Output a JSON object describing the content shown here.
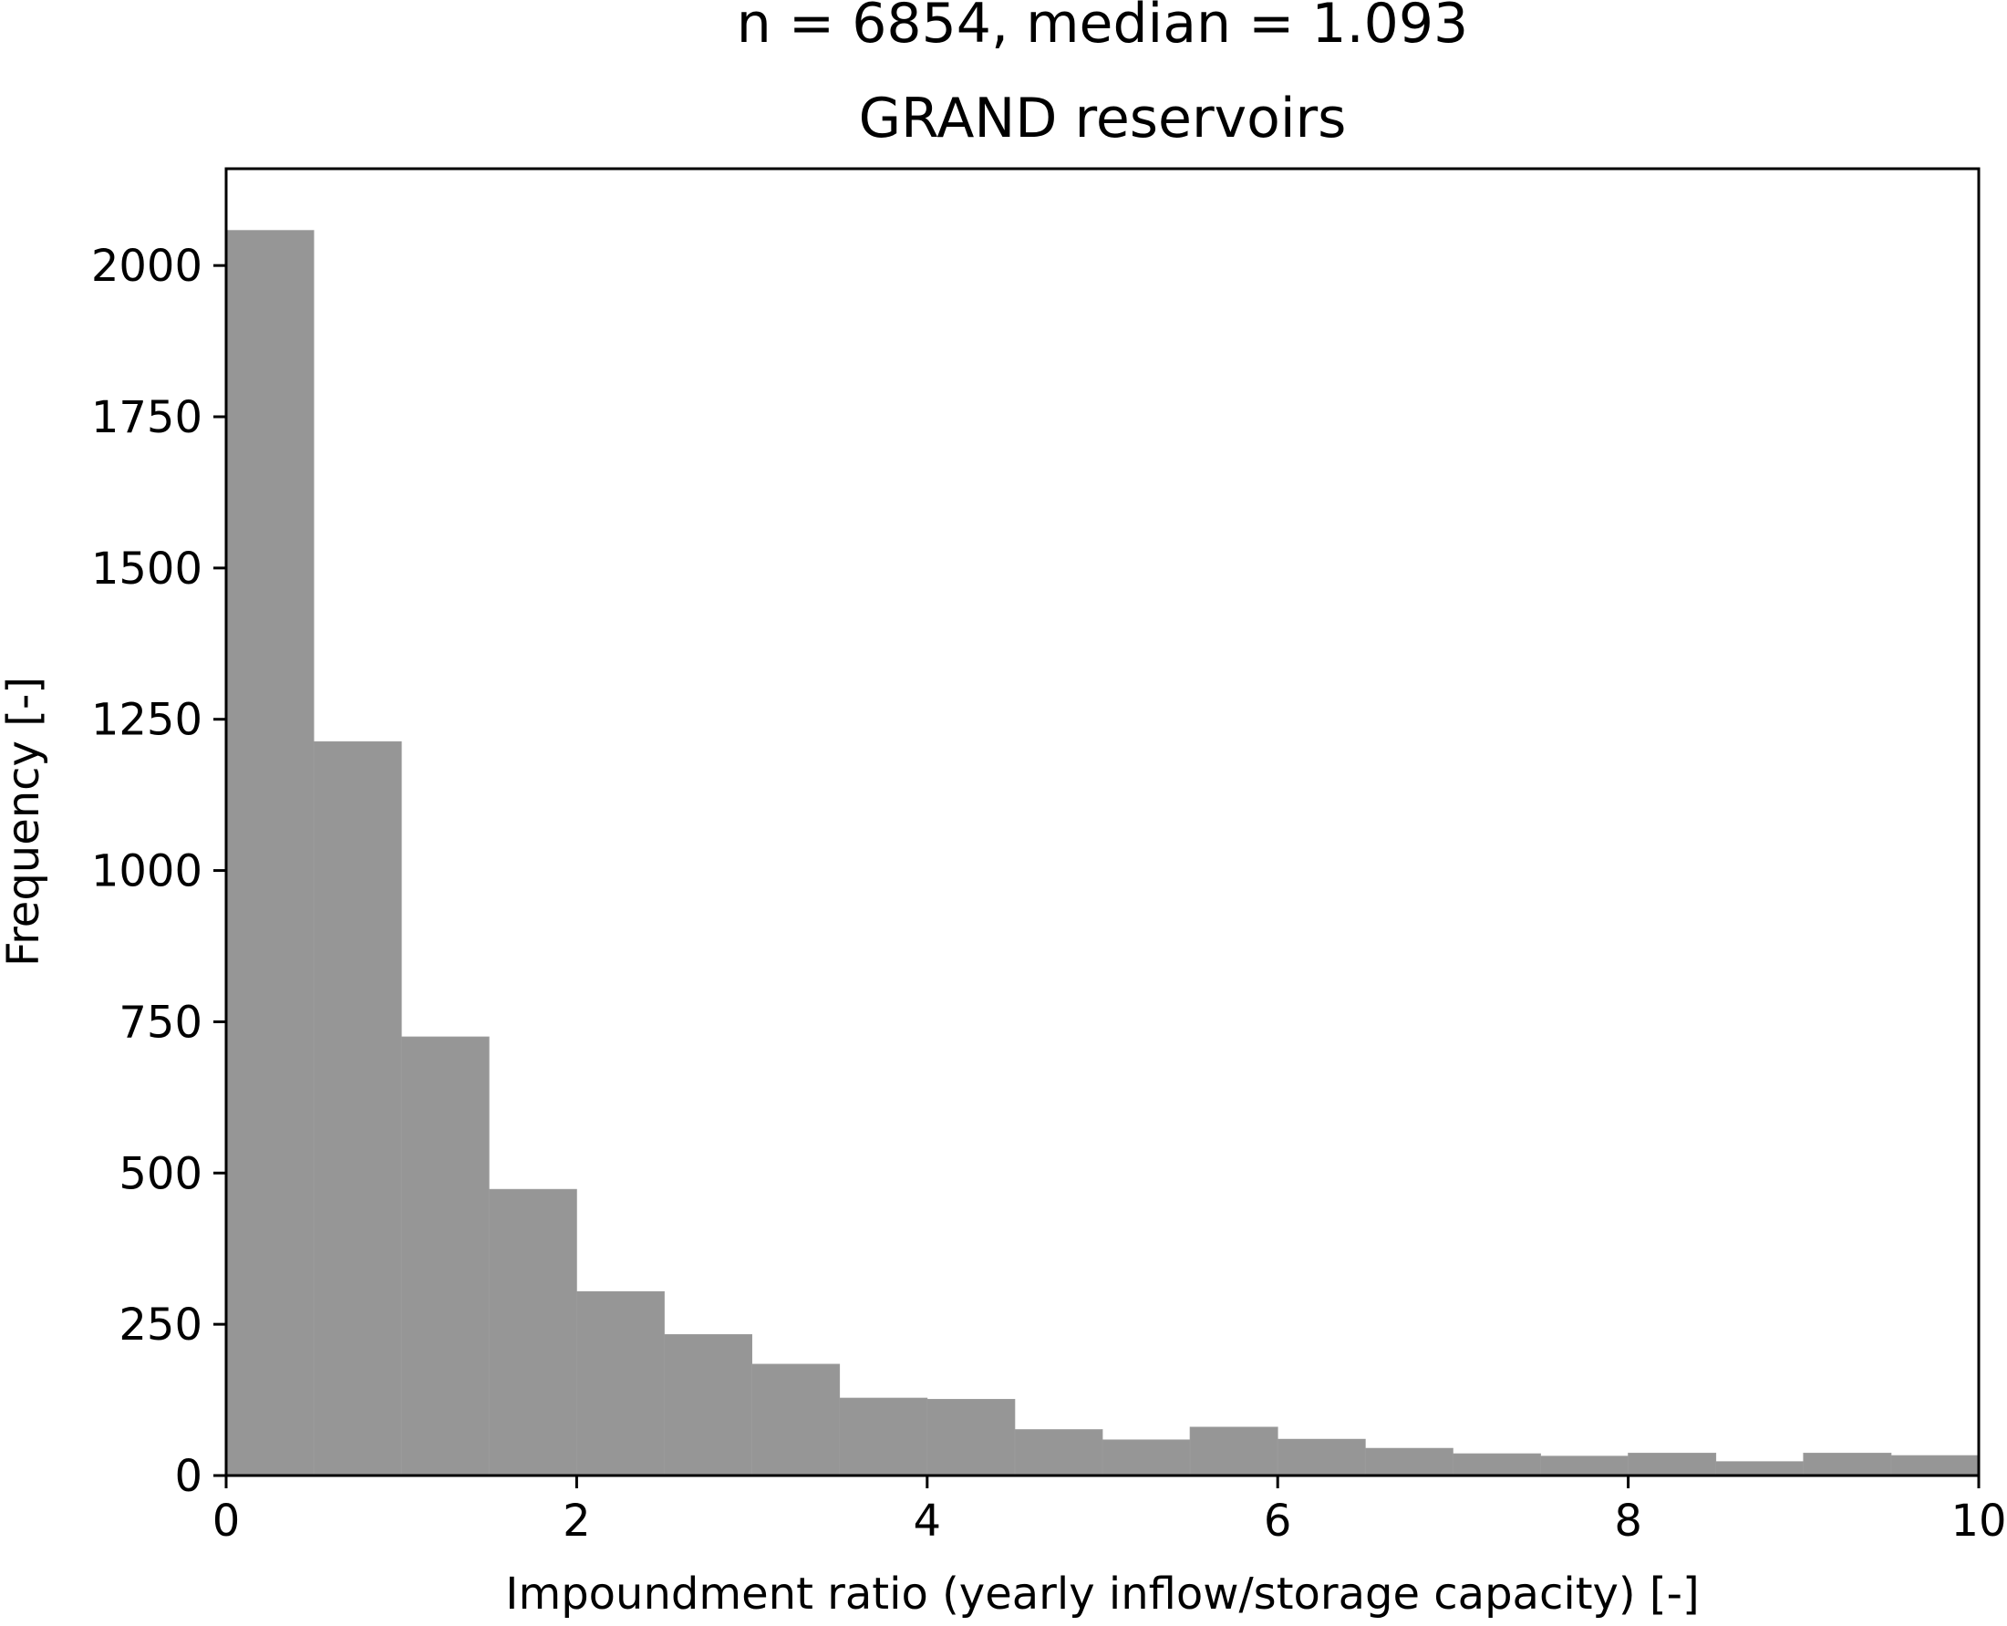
{
  "chart_data": {
    "type": "bar",
    "title": "GRAND  reservoirs",
    "subtitle": "n = 6854, median = 1.093",
    "xlabel": "Impoundment ratio (yearly inflow/storage capacity) [-]",
    "ylabel": "Frequency [-]",
    "xlim": [
      0,
      10
    ],
    "ylim": [
      0,
      2160
    ],
    "xticks": [
      0,
      2,
      4,
      6,
      8,
      10
    ],
    "yticks": [
      0,
      250,
      500,
      750,
      1000,
      1250,
      1500,
      1750,
      2000
    ],
    "bin_edges": [
      0,
      0.5,
      1,
      1.5,
      2,
      2.5,
      3,
      3.5,
      4,
      4.5,
      5,
      5.5,
      6,
      6.5,
      7,
      7.5,
      8,
      8.5,
      9,
      9.5,
      10
    ],
    "values": [
      2058,
      1213,
      725,
      473,
      304,
      233,
      184,
      128,
      126,
      76,
      59,
      80,
      60,
      45,
      36,
      32,
      37,
      23,
      37,
      33
    ],
    "bar_color": "#969696",
    "grid": false
  }
}
